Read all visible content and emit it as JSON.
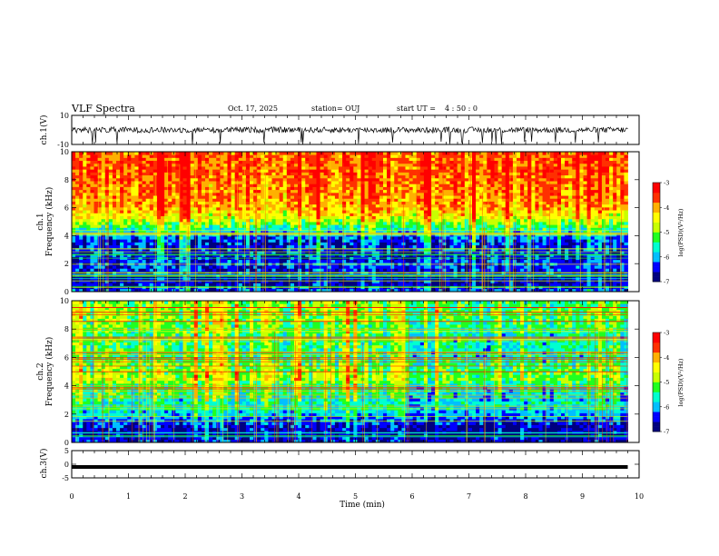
{
  "header": {
    "title": "VLF Spectra",
    "date": "Oct. 17, 2025",
    "station": "station= OUJ",
    "start_label": "start  UT =",
    "start_value": "4 : 50 : 0"
  },
  "chart_data": [
    {
      "type": "line",
      "name": "ch1-waveform",
      "ylabel": "ch.1(V)",
      "ylim": [
        -10,
        10
      ],
      "yticks": [
        "10",
        "-10"
      ],
      "xlim": [
        0,
        10
      ],
      "trace_center": 0,
      "trace_amplitude_typical": 2,
      "trace_extent_min": -10,
      "color": "#000000"
    },
    {
      "type": "heatmap",
      "name": "ch1-spectrogram",
      "ylabel": "ch.1\nFrequency (kHz)",
      "ylabel_line1": "ch.1",
      "ylabel_line2": "Frequency (kHz)",
      "ylim": [
        0,
        10
      ],
      "yticks": [
        "0",
        "2",
        "4",
        "6",
        "8",
        "10"
      ],
      "xlim": [
        0,
        10
      ],
      "data_end_min": 9.8,
      "colorbar": {
        "label": "log(PSD)(V²/Hz)",
        "range": [
          -7,
          -3
        ],
        "ticks": [
          "-3",
          "-4",
          "-5",
          "-6",
          "-7"
        ]
      },
      "profile_khz": [
        {
          "f": 0.0,
          "v": -6.2
        },
        {
          "f": 0.5,
          "v": -6.6
        },
        {
          "f": 1.0,
          "v": -6.8
        },
        {
          "f": 1.5,
          "v": -6.5
        },
        {
          "f": 2.0,
          "v": -6.3
        },
        {
          "f": 2.5,
          "v": -6.5
        },
        {
          "f": 3.0,
          "v": -6.4
        },
        {
          "f": 3.5,
          "v": -6.5
        },
        {
          "f": 4.0,
          "v": -6.1
        },
        {
          "f": 4.5,
          "v": -5.5
        },
        {
          "f": 5.0,
          "v": -4.9
        },
        {
          "f": 5.5,
          "v": -4.4
        },
        {
          "f": 6.0,
          "v": -4.1
        },
        {
          "f": 7.0,
          "v": -3.9
        },
        {
          "f": 8.0,
          "v": -3.8
        },
        {
          "f": 9.0,
          "v": -3.7
        },
        {
          "f": 10.0,
          "v": -3.7
        }
      ]
    },
    {
      "type": "heatmap",
      "name": "ch2-spectrogram",
      "ylabel": "ch.2\nFrequency (kHz)",
      "ylabel_line1": "ch.2",
      "ylabel_line2": "Frequency (kHz)",
      "ylim": [
        0,
        10
      ],
      "yticks": [
        "0",
        "2",
        "4",
        "6",
        "8",
        "10"
      ],
      "xlim": [
        0,
        10
      ],
      "data_end_min": 9.8,
      "colorbar": {
        "label": "log(PSD)(V²/Hz)",
        "range": [
          -7,
          -3
        ],
        "ticks": [
          "-3",
          "-4",
          "-5",
          "-6",
          "-7"
        ]
      },
      "profile_khz": [
        {
          "f": 0.0,
          "v": -6.5
        },
        {
          "f": 0.5,
          "v": -6.7
        },
        {
          "f": 1.0,
          "v": -6.6
        },
        {
          "f": 1.5,
          "v": -6.3
        },
        {
          "f": 2.0,
          "v": -5.9
        },
        {
          "f": 2.5,
          "v": -5.6
        },
        {
          "f": 3.0,
          "v": -5.6
        },
        {
          "f": 3.5,
          "v": -5.4
        },
        {
          "f": 4.0,
          "v": -5.3
        },
        {
          "f": 4.5,
          "v": -4.8
        },
        {
          "f": 5.0,
          "v": -4.9
        },
        {
          "f": 6.0,
          "v": -5.3
        },
        {
          "f": 7.0,
          "v": -5.3
        },
        {
          "f": 8.0,
          "v": -5.2
        },
        {
          "f": 9.0,
          "v": -4.9
        },
        {
          "f": 10.0,
          "v": -5.0
        }
      ]
    },
    {
      "type": "line",
      "name": "ch3-waveform",
      "ylabel": "ch.3(V)",
      "ylim": [
        -5,
        5
      ],
      "yticks": [
        "5",
        "0",
        "-5"
      ],
      "xlim": [
        0,
        10
      ],
      "constant_value": -1.0,
      "color": "#000000"
    }
  ],
  "xaxis": {
    "label": "Time (min)",
    "range": [
      0,
      10
    ],
    "ticks": [
      "0",
      "1",
      "2",
      "3",
      "4",
      "5",
      "6",
      "7",
      "8",
      "9",
      "10"
    ]
  },
  "colormap": [
    "#00007f",
    "#0000ff",
    "#00bfff",
    "#00ffd0",
    "#20ff20",
    "#c8ff00",
    "#ffff00",
    "#ffb000",
    "#ff3000",
    "#ff0000"
  ]
}
